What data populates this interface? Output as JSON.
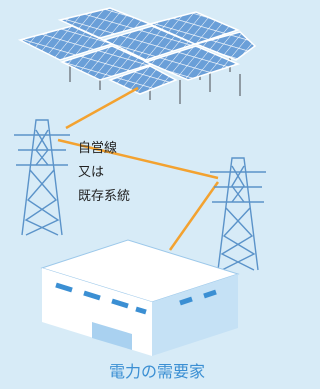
{
  "label": {
    "lines": [
      "自営線",
      "又は",
      "既存系統"
    ]
  },
  "caption": "電力の需要家"
}
